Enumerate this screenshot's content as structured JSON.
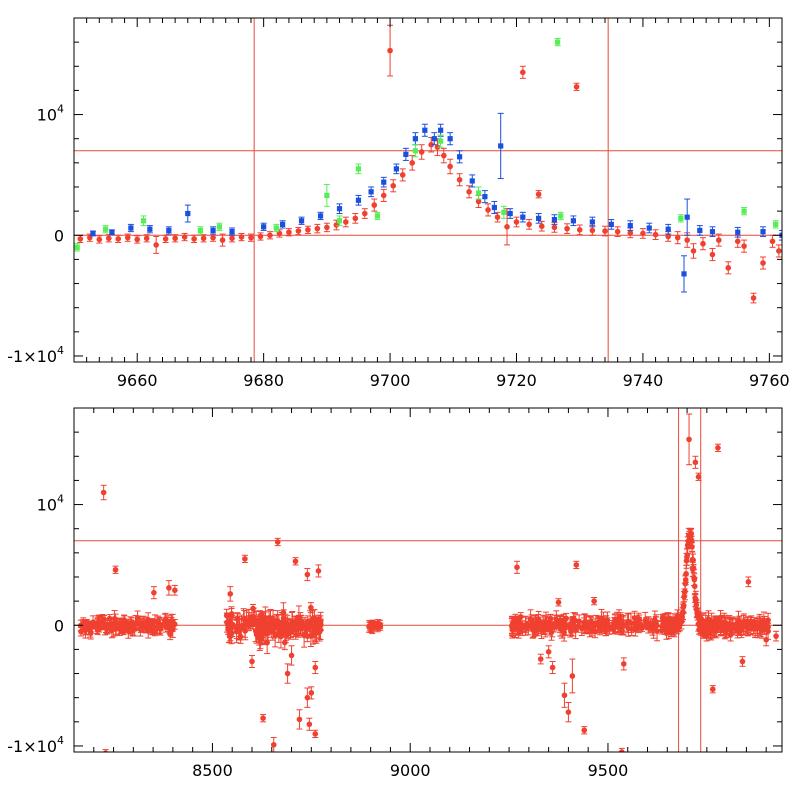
{
  "colors": {
    "red": "#f04030",
    "blue": "#1a50e0",
    "green": "#55ee55",
    "refline": "#e84a3a",
    "axis": "#000000"
  },
  "chart_data": [
    {
      "type": "scatter",
      "title": "",
      "xlabel": "",
      "ylabel": "",
      "xlim": [
        9650,
        9762
      ],
      "ylim": [
        -10500,
        18000
      ],
      "xticks": [
        9660,
        9680,
        9700,
        9720,
        9740,
        9760
      ],
      "xtick_labels": [
        "9660",
        "9680",
        "9700",
        "9720",
        "9740",
        "9760"
      ],
      "yticks": [
        -10000,
        0,
        10000
      ],
      "ytick_labels": [
        {
          "base": "-1×10",
          "exp": "4"
        },
        {
          "base": "0",
          "exp": ""
        },
        {
          "base": "10",
          "exp": "4"
        }
      ],
      "hlines": [
        0,
        7000
      ],
      "vlines": [
        9678.5,
        9734.5
      ],
      "series": [
        {
          "color": "red",
          "marker": "circle",
          "points": [
            [
              9651,
              -300,
              300
            ],
            [
              9652.5,
              -200,
              300
            ],
            [
              9654,
              -350,
              300
            ],
            [
              9655.5,
              -250,
              300
            ],
            [
              9657,
              -300,
              300
            ],
            [
              9658.5,
              -200,
              300
            ],
            [
              9660,
              -350,
              300
            ],
            [
              9661.5,
              -250,
              300
            ],
            [
              9663,
              -800,
              700
            ],
            [
              9664.5,
              -300,
              300
            ],
            [
              9666,
              -250,
              300
            ],
            [
              9667.5,
              -150,
              300
            ],
            [
              9669,
              -300,
              300
            ],
            [
              9670.5,
              -250,
              300
            ],
            [
              9672,
              -200,
              300
            ],
            [
              9673.5,
              -400,
              500
            ],
            [
              9675,
              -250,
              300
            ],
            [
              9676.5,
              -150,
              300
            ],
            [
              9678,
              -200,
              300
            ],
            [
              9679.5,
              -100,
              300
            ],
            [
              9681,
              0,
              300
            ],
            [
              9682.5,
              150,
              300
            ],
            [
              9684,
              250,
              300
            ],
            [
              9685.5,
              350,
              300
            ],
            [
              9687,
              450,
              300
            ],
            [
              9688.5,
              550,
              350
            ],
            [
              9690,
              650,
              350
            ],
            [
              9691.5,
              850,
              400
            ],
            [
              9693,
              1100,
              400
            ],
            [
              9694.5,
              1400,
              400
            ],
            [
              9696,
              1800,
              400
            ],
            [
              9697.5,
              2500,
              500
            ],
            [
              9699,
              3300,
              500
            ],
            [
              9700,
              15300,
              2100
            ],
            [
              9700.5,
              4100,
              500
            ],
            [
              9702,
              5000,
              500
            ],
            [
              9703.5,
              6000,
              600
            ],
            [
              9705,
              6900,
              600
            ],
            [
              9706.5,
              7500,
              600
            ],
            [
              9707.5,
              7300,
              700
            ],
            [
              9708.5,
              6600,
              600
            ],
            [
              9709.5,
              5700,
              600
            ],
            [
              9711,
              4600,
              500
            ],
            [
              9712.5,
              3600,
              500
            ],
            [
              9714,
              2800,
              500
            ],
            [
              9715.5,
              2100,
              500
            ],
            [
              9717,
              1500,
              400
            ],
            [
              9718.5,
              700,
              1500
            ],
            [
              9720,
              1100,
              400
            ],
            [
              9721,
              13500,
              500
            ],
            [
              9723.5,
              3400,
              300
            ],
            [
              9729.5,
              12300,
              300
            ],
            [
              9722,
              900,
              400
            ],
            [
              9724,
              750,
              400
            ],
            [
              9726,
              650,
              400
            ],
            [
              9728,
              550,
              400
            ],
            [
              9730,
              450,
              400
            ],
            [
              9732,
              400,
              400
            ],
            [
              9734,
              350,
              400
            ],
            [
              9736,
              300,
              400
            ],
            [
              9738,
              200,
              400
            ],
            [
              9740,
              150,
              400
            ],
            [
              9742,
              50,
              400
            ],
            [
              9744,
              -100,
              400
            ],
            [
              9745.5,
              -200,
              500
            ],
            [
              9747,
              -400,
              600
            ],
            [
              9748,
              -1300,
              600
            ],
            [
              9749.5,
              -700,
              500
            ],
            [
              9751,
              -1600,
              500
            ],
            [
              9752,
              -400,
              500
            ],
            [
              9753.5,
              -2700,
              500
            ],
            [
              9755,
              -500,
              500
            ],
            [
              9756,
              -900,
              500
            ],
            [
              9757.5,
              -5200,
              400
            ],
            [
              9759,
              -2300,
              500
            ],
            [
              9760.5,
              -500,
              500
            ],
            [
              9761.5,
              -1300,
              500
            ]
          ]
        },
        {
          "color": "blue",
          "marker": "square",
          "points": [
            [
              9653,
              150,
              200
            ],
            [
              9656,
              250,
              200
            ],
            [
              9659,
              600,
              300
            ],
            [
              9662,
              500,
              300
            ],
            [
              9665,
              400,
              300
            ],
            [
              9668,
              1800,
              700
            ],
            [
              9672,
              400,
              300
            ],
            [
              9675,
              300,
              300
            ],
            [
              9680,
              700,
              300
            ],
            [
              9683,
              900,
              300
            ],
            [
              9686,
              1200,
              300
            ],
            [
              9689,
              1600,
              300
            ],
            [
              9692,
              2200,
              400
            ],
            [
              9695,
              2900,
              400
            ],
            [
              9697,
              3600,
              400
            ],
            [
              9699,
              4400,
              400
            ],
            [
              9701,
              5500,
              400
            ],
            [
              9702.5,
              6700,
              500
            ],
            [
              9704,
              8000,
              500
            ],
            [
              9705.5,
              8700,
              500
            ],
            [
              9707,
              8000,
              500
            ],
            [
              9708,
              8700,
              500
            ],
            [
              9709.5,
              8000,
              500
            ],
            [
              9711,
              6500,
              500
            ],
            [
              9713,
              4500,
              500
            ],
            [
              9715,
              3200,
              500
            ],
            [
              9716.5,
              2300,
              500
            ],
            [
              9717.5,
              7400,
              2700
            ],
            [
              9719,
              1800,
              400
            ],
            [
              9721,
              1500,
              400
            ],
            [
              9723.5,
              1400,
              400
            ],
            [
              9726,
              1300,
              400
            ],
            [
              9729,
              1200,
              400
            ],
            [
              9732,
              1100,
              400
            ],
            [
              9735,
              900,
              400
            ],
            [
              9738,
              800,
              400
            ],
            [
              9741,
              600,
              400
            ],
            [
              9744,
              500,
              400
            ],
            [
              9746.5,
              -3200,
              1500
            ],
            [
              9747,
              1500,
              1500
            ],
            [
              9749,
              400,
              400
            ],
            [
              9751,
              300,
              400
            ],
            [
              9755,
              250,
              400
            ],
            [
              9759,
              300,
              400
            ],
            [
              9762,
              0,
              400
            ]
          ]
        },
        {
          "color": "green",
          "marker": "square",
          "points": [
            [
              9650.5,
              -1000,
              300
            ],
            [
              9655,
              500,
              300
            ],
            [
              9661,
              1200,
              400
            ],
            [
              9670,
              400,
              300
            ],
            [
              9673,
              700,
              300
            ],
            [
              9682,
              600,
              300
            ],
            [
              9690,
              3300,
              900
            ],
            [
              9692,
              1200,
              400
            ],
            [
              9695,
              5500,
              400
            ],
            [
              9698,
              1600,
              300
            ],
            [
              9704,
              7000,
              500
            ],
            [
              9708,
              7800,
              500
            ],
            [
              9714,
              3500,
              500
            ],
            [
              9718,
              1900,
              500
            ],
            [
              9727,
              1600,
              300
            ],
            [
              9726.5,
              16000,
              300
            ],
            [
              9746,
              1400,
              300
            ],
            [
              9756,
              2000,
              300
            ],
            [
              9761,
              900,
              300
            ]
          ]
        }
      ]
    },
    {
      "type": "scatter",
      "title": "",
      "xlabel": "",
      "ylabel": "",
      "xlim": [
        8150,
        9940
      ],
      "ylim": [
        -10500,
        18000
      ],
      "xticks": [
        8500,
        9000,
        9500
      ],
      "xtick_labels": [
        "8500",
        "9000",
        "9500"
      ],
      "yticks": [
        -10000,
        0,
        10000
      ],
      "ytick_labels": [
        {
          "base": "-1×10",
          "exp": "4"
        },
        {
          "base": "0",
          "exp": ""
        },
        {
          "base": "10",
          "exp": "4"
        }
      ],
      "hlines": [
        0,
        7000
      ],
      "vlines": [
        9678.5,
        9734.5
      ],
      "clusters": [
        {
          "x0": 8165,
          "x1": 8405,
          "n": 130,
          "amp": 650,
          "err": 450,
          "seed": 3
        },
        {
          "x0": 8535,
          "x1": 8775,
          "n": 180,
          "amp": 1200,
          "err": 650,
          "seed": 7
        },
        {
          "x0": 8895,
          "x1": 8925,
          "n": 18,
          "amp": 300,
          "err": 350,
          "seed": 11
        },
        {
          "x0": 9255,
          "x1": 9625,
          "n": 200,
          "amp": 650,
          "err": 550,
          "seed": 17
        },
        {
          "x0": 9775,
          "x1": 9905,
          "n": 80,
          "amp": 650,
          "err": 550,
          "seed": 23
        }
      ],
      "outliers": [
        [
          8225,
          11000,
          600
        ],
        [
          8255,
          4600,
          300
        ],
        [
          8230,
          -10600,
          300
        ],
        [
          8390,
          3100,
          600
        ],
        [
          8405,
          2900,
          400
        ],
        [
          8352,
          2700,
          500
        ],
        [
          8545,
          2600,
          600
        ],
        [
          8582,
          5500,
          300
        ],
        [
          8665,
          6900,
          300
        ],
        [
          8710,
          5300,
          300
        ],
        [
          8740,
          4200,
          500
        ],
        [
          8768,
          4500,
          500
        ],
        [
          8628,
          -7700,
          300
        ],
        [
          8655,
          -9900,
          600
        ],
        [
          8720,
          -7800,
          800
        ],
        [
          8740,
          -6000,
          800
        ],
        [
          8750,
          -5600,
          500
        ],
        [
          8745,
          -8200,
          500
        ],
        [
          8700,
          -2500,
          800
        ],
        [
          8690,
          -4000,
          800
        ],
        [
          8760,
          -3500,
          500
        ],
        [
          8600,
          -3000,
          500
        ],
        [
          8760,
          -9000,
          300
        ],
        [
          9270,
          4800,
          500
        ],
        [
          9375,
          1900,
          300
        ],
        [
          9420,
          5000,
          300
        ],
        [
          9465,
          2000,
          300
        ],
        [
          9390,
          -5800,
          1000
        ],
        [
          9400,
          -7200,
          800
        ],
        [
          9360,
          -3500,
          500
        ],
        [
          9330,
          -2800,
          400
        ],
        [
          9350,
          -2200,
          500
        ],
        [
          9410,
          -4200,
          1400
        ],
        [
          9440,
          -8700,
          300
        ],
        [
          9540,
          -3200,
          500
        ],
        [
          9535,
          -10500,
          300
        ],
        [
          9705,
          15400,
          2100
        ],
        [
          9721,
          13500,
          500
        ],
        [
          9729,
          12300,
          300
        ],
        [
          9778,
          14700,
          300
        ],
        [
          9765,
          -5300,
          300
        ],
        [
          9855,
          3600,
          400
        ],
        [
          9840,
          -3000,
          400
        ],
        [
          9810,
          -800,
          500
        ],
        [
          9900,
          -1200,
          500
        ],
        [
          9925,
          -900,
          400
        ]
      ],
      "event": {
        "x0": 9636,
        "x1": 9775,
        "n": 140,
        "err": 450,
        "seed": 31
      }
    }
  ]
}
